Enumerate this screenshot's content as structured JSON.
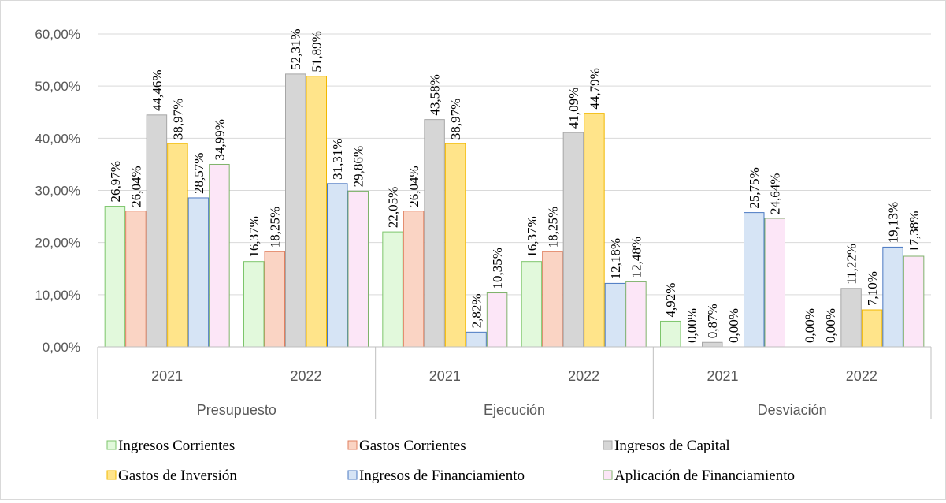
{
  "chart_data": {
    "type": "bar",
    "title": "",
    "xlabel": "",
    "ylabel": "",
    "ylim": [
      0,
      60
    ],
    "y_ticks": [
      "0,00%",
      "10,00%",
      "20,00%",
      "30,00%",
      "40,00%",
      "50,00%",
      "60,00%"
    ],
    "grid": true,
    "legend_position": "bottom",
    "groups": [
      {
        "label": "Presupuesto",
        "categories": [
          "2021",
          "2022"
        ]
      },
      {
        "label": "Ejecución",
        "categories": [
          "2021",
          "2022"
        ]
      },
      {
        "label": "Desviación",
        "categories": [
          "2021",
          "2022"
        ]
      }
    ],
    "categories": [
      "2021",
      "2022",
      "2021",
      "2022",
      "2021",
      "2022"
    ],
    "series": [
      {
        "name": "Ingresos Corrientes",
        "color": "#E2F9DC",
        "edge": "#7CC56B",
        "values": [
          26.97,
          16.37,
          22.05,
          16.37,
          4.92,
          0.0
        ],
        "labels": [
          "26,97%",
          "16,37%",
          "22,05%",
          "16,37%",
          "4,92%",
          "0,00%"
        ]
      },
      {
        "name": "Gastos Corrientes",
        "color": "#FAD4C4",
        "edge": "#E07F5F",
        "values": [
          26.04,
          18.25,
          26.04,
          18.25,
          0.0,
          0.0
        ],
        "labels": [
          "26,04%",
          "18,25%",
          "26,04%",
          "18,25%",
          "0,00%",
          "0,00%"
        ]
      },
      {
        "name": "Ingresos de Capital",
        "color": "#D6D6D6",
        "edge": "#A6A6A6",
        "values": [
          44.46,
          52.31,
          43.58,
          41.09,
          0.87,
          11.22
        ],
        "labels": [
          "44,46%",
          "52,31%",
          "43,58%",
          "41,09%",
          "0,87%",
          "11,22%"
        ]
      },
      {
        "name": "Gastos de Inversión",
        "color": "#FFE48A",
        "edge": "#F2B800",
        "values": [
          38.97,
          51.89,
          38.97,
          44.79,
          0.0,
          7.1
        ],
        "labels": [
          "38,97%",
          "51,89%",
          "38,97%",
          "44,79%",
          "0,00%",
          "7,10%"
        ]
      },
      {
        "name": "Ingresos de Financiamiento",
        "color": "#D6E4F5",
        "edge": "#4A78C2",
        "values": [
          28.57,
          31.31,
          2.82,
          12.18,
          25.75,
          19.13
        ],
        "labels": [
          "28,57%",
          "31,31%",
          "2,82%",
          "12,18%",
          "25,75%",
          "19,13%"
        ]
      },
      {
        "name": "Aplicación de Financiamiento",
        "color": "#FCE6F7",
        "edge": "#7FB26B",
        "values": [
          34.99,
          29.86,
          10.35,
          12.48,
          24.64,
          17.38
        ],
        "labels": [
          "34,99%",
          "29,86%",
          "10,35%",
          "12,48%",
          "24,64%",
          "17,38%"
        ]
      }
    ]
  }
}
